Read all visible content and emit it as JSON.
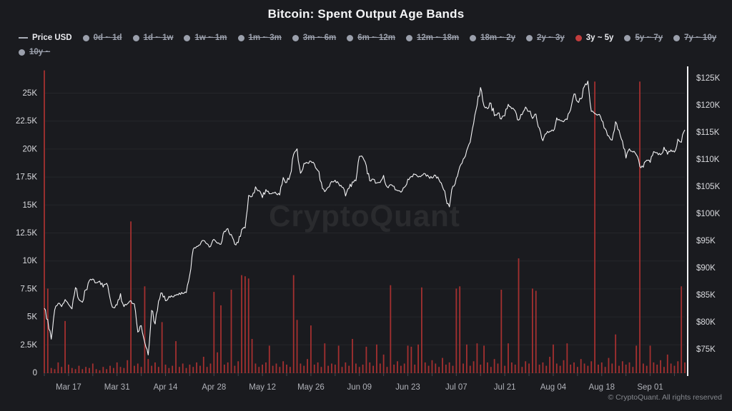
{
  "header": {
    "title": "Bitcoin: Spent Output Age Bands"
  },
  "watermark": "CryptoQuant",
  "footer": {
    "copyright": "© CryptoQuant. All rights reserved"
  },
  "colors": {
    "background": "#1a1b1f",
    "accent_red": "#c33d3d",
    "bar_red": "#a43030",
    "price_line": "#f4f4f6",
    "grid": "rgba(255,255,255,0.05)",
    "axis_text": "#d9dade",
    "x_axis_text": "#b0b2b9",
    "right_axis_line": "#f2f2f4",
    "muted_text": "#9ba0ac"
  },
  "legend": {
    "items": [
      {
        "label": "Price USD",
        "marker": "line",
        "active": true
      },
      {
        "label": "0d ~ 1d",
        "marker": "dot",
        "active": false
      },
      {
        "label": "1d ~ 1w",
        "marker": "dot",
        "active": false
      },
      {
        "label": "1w ~ 1m",
        "marker": "dot",
        "active": false
      },
      {
        "label": "1m ~ 3m",
        "marker": "dot",
        "active": false
      },
      {
        "label": "3m ~ 6m",
        "marker": "dot",
        "active": false
      },
      {
        "label": "6m ~ 12m",
        "marker": "dot",
        "active": false
      },
      {
        "label": "12m ~ 18m",
        "marker": "dot",
        "active": false
      },
      {
        "label": "18m ~ 2y",
        "marker": "dot",
        "active": false
      },
      {
        "label": "2y ~ 3y",
        "marker": "dot",
        "active": false
      },
      {
        "label": "3y ~ 5y",
        "marker": "dot",
        "active": true,
        "color": "#c33d3d"
      },
      {
        "label": "5y ~ 7y",
        "marker": "dot",
        "active": false
      },
      {
        "label": "7y ~ 10y",
        "marker": "dot",
        "active": false
      },
      {
        "label": "10y ~",
        "marker": "dot",
        "active": false
      }
    ]
  },
  "chart_data": {
    "type": "mixed",
    "title": "Bitcoin: Spent Output Age Bands",
    "grid": "horizontal-only",
    "left_axis": {
      "ticks": [
        "0",
        "2.5K",
        "5K",
        "7.5K",
        "10K",
        "12.5K",
        "15K",
        "17.5K",
        "20K",
        "22.5K",
        "25K"
      ],
      "tick_values_k": [
        0,
        2.5,
        5,
        7.5,
        10,
        12.5,
        15,
        17.5,
        20,
        22.5,
        25
      ],
      "range_k": [
        0,
        27.2
      ]
    },
    "right_axis": {
      "ticks": [
        "$75K",
        "$80K",
        "$85K",
        "$90K",
        "$95K",
        "$100K",
        "$105K",
        "$110K",
        "$115K",
        "$120K",
        "$125K"
      ],
      "tick_values_usd_k": [
        75,
        80,
        85,
        90,
        95,
        100,
        105,
        110,
        115,
        120,
        125
      ],
      "range_usd_k": [
        70.7,
        126.6
      ]
    },
    "x_axis": {
      "tick_labels": [
        {
          "label": "Mar 17",
          "day": 7
        },
        {
          "label": "Mar 31",
          "day": 21
        },
        {
          "label": "Apr 14",
          "day": 35
        },
        {
          "label": "Apr 28",
          "day": 49
        },
        {
          "label": "May 12",
          "day": 63
        },
        {
          "label": "May 26",
          "day": 77
        },
        {
          "label": "Jun 09",
          "day": 91
        },
        {
          "label": "Jun 23",
          "day": 105
        },
        {
          "label": "Jul 07",
          "day": 119
        },
        {
          "label": "Jul 21",
          "day": 133
        },
        {
          "label": "Aug 04",
          "day": 147
        },
        {
          "label": "Aug 18",
          "day": 161
        },
        {
          "label": "Sep 01",
          "day": 175
        },
        {
          "label": "",
          "day": 185
        }
      ],
      "minor_tick_every_days": 7
    },
    "series": [
      {
        "name": "Price USD",
        "type": "line",
        "axis": "right",
        "unit": "USD thousands",
        "color": "#f4f4f6",
        "values": [
          82.5,
          80.4,
          76.8,
          82.2,
          83.4,
          82.8,
          84.1,
          83.2,
          82.4,
          86.3,
          84.1,
          83.6,
          85.9,
          87.6,
          87.9,
          87.2,
          87.5,
          86.4,
          87.1,
          84.3,
          82.6,
          83.1,
          85.2,
          82.8,
          83.3,
          83.9,
          83.3,
          78.1,
          79.3,
          76.2,
          73.9,
          82.1,
          79.6,
          83.8,
          85.3,
          83.9,
          84.7,
          84.6,
          84.9,
          85.3,
          85.2,
          85.4,
          88.6,
          93.4,
          93.9,
          94.2,
          95.0,
          94.4,
          93.9,
          95.2,
          94.5,
          94.3,
          96.7,
          97.2,
          96.1,
          94.3,
          94.6,
          97.0,
          97.3,
          103.3,
          103.1,
          104.9,
          104.2,
          102.9,
          104.4,
          103.6,
          103.8,
          103.6,
          103.4,
          106.6,
          105.7,
          107.1,
          110.9,
          111.9,
          107.4,
          109.2,
          109.3,
          109.6,
          109.1,
          107.9,
          105.7,
          104.0,
          104.8,
          105.9,
          106.1,
          105.5,
          104.8,
          103.2,
          104.6,
          105.8,
          106.0,
          110.5,
          110.3,
          108.8,
          106.0,
          106.3,
          105.6,
          105.7,
          107.0,
          104.9,
          105.3,
          105.0,
          104.2,
          103.9,
          104.8,
          106.3,
          106.8,
          107.2,
          106.7,
          107.0,
          107.3,
          106.8,
          106.5,
          107.0,
          106.2,
          104.9,
          102.8,
          101.2,
          105.0,
          106.5,
          108.6,
          110.0,
          111.6,
          113.1,
          116.6,
          119.9,
          123.2,
          119.8,
          119.3,
          120.3,
          118.0,
          118.5,
          117.4,
          118.0,
          120.1,
          119.3,
          118.9,
          117.2,
          118.2,
          119.6,
          118.8,
          117.5,
          118.3,
          115.7,
          113.4,
          114.7,
          115.1,
          115.2,
          117.6,
          117.1,
          116.9,
          117.3,
          119.1,
          122.0,
          120.6,
          121.1,
          123.4,
          124.4,
          118.8,
          118.4,
          118.2,
          117.1,
          115.6,
          114.3,
          113.5,
          116.9,
          115.3,
          113.3,
          110.2,
          111.9,
          111.3,
          110.8,
          108.7,
          108.5,
          109.8,
          109.4,
          111.4,
          111.2,
          110.8,
          112.2,
          110.9,
          111.7,
          111.3,
          113.7,
          113.1,
          115.4
        ]
      },
      {
        "name": "3y ~ 5y",
        "type": "bar",
        "axis": "left",
        "unit": "K",
        "color": "#a43030",
        "values": [
          27,
          7.5,
          0.4,
          0.3,
          0.9,
          0.5,
          4.6,
          0.7,
          0.4,
          0.3,
          0.6,
          0.3,
          0.5,
          0.4,
          0.8,
          0.3,
          0.2,
          0.5,
          0.3,
          0.6,
          0.4,
          0.9,
          0.5,
          0.4,
          1.1,
          13.5,
          0.6,
          0.8,
          0.5,
          7.7,
          1.2,
          0.6,
          0.9,
          0.5,
          4.5,
          0.7,
          0.4,
          0.6,
          2.8,
          0.5,
          0.8,
          0.4,
          0.7,
          0.5,
          0.9,
          0.6,
          1.4,
          0.5,
          0.8,
          7.2,
          1.8,
          6.0,
          0.7,
          0.9,
          7.4,
          0.6,
          1.0,
          8.7,
          8.6,
          8.4,
          3.0,
          0.8,
          0.5,
          0.7,
          0.9,
          2.4,
          0.6,
          0.8,
          0.5,
          1.0,
          0.7,
          0.5,
          8.7,
          4.7,
          0.8,
          0.6,
          1.2,
          4.2,
          0.7,
          0.9,
          0.5,
          2.6,
          0.6,
          0.8,
          0.7,
          2.4,
          0.5,
          0.9,
          0.6,
          3.0,
          0.8,
          0.5,
          0.7,
          2.3,
          0.9,
          0.6,
          2.5,
          0.8,
          1.6,
          0.5,
          7.8,
          0.7,
          1.0,
          0.6,
          0.8,
          2.4,
          2.3,
          0.7,
          2.5,
          7.6,
          0.9,
          0.6,
          1.1,
          0.8,
          0.5,
          1.3,
          0.7,
          0.9,
          0.6,
          7.5,
          7.7,
          0.8,
          2.5,
          0.6,
          1.0,
          2.6,
          0.7,
          2.4,
          0.9,
          0.5,
          1.2,
          0.8,
          7.4,
          0.6,
          2.6,
          0.9,
          0.7,
          10.2,
          0.5,
          1.0,
          0.8,
          7.5,
          7.3,
          0.7,
          0.9,
          0.6,
          1.4,
          2.5,
          0.8,
          0.6,
          1.1,
          2.6,
          0.7,
          0.9,
          0.5,
          1.2,
          0.8,
          0.6,
          1.0,
          26,
          0.7,
          0.9,
          0.5,
          1.3,
          0.8,
          3.4,
          0.6,
          1.0,
          0.7,
          0.9,
          0.5,
          2.4,
          26,
          0.8,
          0.6,
          2.4,
          0.9,
          0.7,
          1.1,
          0.5,
          1.6,
          0.8,
          0.6,
          1.0,
          7.7,
          0.9
        ]
      }
    ]
  }
}
